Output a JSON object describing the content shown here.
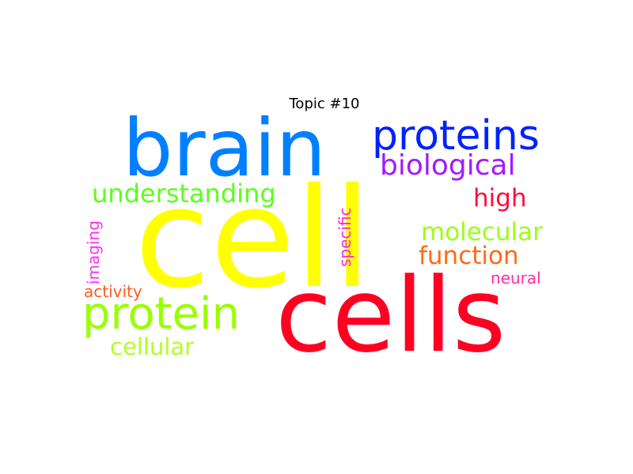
{
  "title": "Topic #10",
  "words": [
    {
      "id": "cell",
      "text": "cell",
      "color": "#ffff00"
    },
    {
      "id": "cells",
      "text": "cells",
      "color": "#ff0022"
    },
    {
      "id": "brain",
      "text": "brain",
      "color": "#0080ff"
    },
    {
      "id": "protein",
      "text": "protein",
      "color": "#99ff00"
    },
    {
      "id": "proteins",
      "text": "proteins",
      "color": "#0022ff"
    },
    {
      "id": "biological",
      "text": "biological",
      "color": "#a21bff"
    },
    {
      "id": "understanding",
      "text": "understanding",
      "color": "#5cff1c"
    },
    {
      "id": "high",
      "text": "high",
      "color": "#ff0a3f"
    },
    {
      "id": "molecular",
      "text": "molecular",
      "color": "#9aff19"
    },
    {
      "id": "function",
      "text": "function",
      "color": "#ff6a17"
    },
    {
      "id": "cellular",
      "text": "cellular",
      "color": "#b2ff24"
    },
    {
      "id": "specific",
      "text": "specific",
      "color": "#ff29cf"
    },
    {
      "id": "imaging",
      "text": "imaging",
      "color": "#ff2df2"
    },
    {
      "id": "activity",
      "text": "activity",
      "color": "#ff5a1e"
    },
    {
      "id": "neural",
      "text": "neural",
      "color": "#ff2fa4"
    }
  ]
}
